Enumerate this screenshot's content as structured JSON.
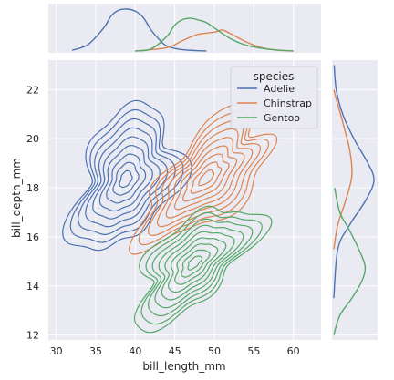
{
  "chart_data": {
    "type": "jointplot-kde",
    "xlabel": "bill_length_mm",
    "ylabel": "bill_depth_mm",
    "xlim": [
      29,
      63.5
    ],
    "ylim": [
      11.8,
      23.2
    ],
    "xticks": [
      30,
      35,
      40,
      45,
      50,
      55,
      60
    ],
    "yticks": [
      12,
      14,
      16,
      18,
      20,
      22
    ],
    "grid": true,
    "background": "#eaeaf2",
    "legend": {
      "title": "species",
      "placement": "top-right"
    },
    "series": [
      {
        "name": "Adelie",
        "color": "#4c72b0",
        "center": [
          38.8,
          18.35
        ],
        "spread": [
          2.7,
          1.2
        ],
        "correlation": 0.38,
        "marginal_x": [
          [
            32,
            0.02
          ],
          [
            34,
            0.15
          ],
          [
            36,
            0.55
          ],
          [
            37,
            0.85
          ],
          [
            38,
            0.98
          ],
          [
            39,
            1.0
          ],
          [
            40,
            0.95
          ],
          [
            41,
            0.8
          ],
          [
            42,
            0.5
          ],
          [
            43,
            0.28
          ],
          [
            44,
            0.12
          ],
          [
            46,
            0.03
          ],
          [
            49,
            0.0
          ]
        ],
        "marginal_y": [
          [
            13.5,
            0.0
          ],
          [
            15.5,
            0.1
          ],
          [
            16.5,
            0.4
          ],
          [
            17.5,
            0.8
          ],
          [
            18.3,
            1.0
          ],
          [
            19.0,
            0.85
          ],
          [
            20.0,
            0.5
          ],
          [
            21.0,
            0.22
          ],
          [
            22.0,
            0.06
          ],
          [
            23.0,
            0.01
          ]
        ]
      },
      {
        "name": "Chinstrap",
        "color": "#dd8452",
        "center": [
          49.0,
          18.4
        ],
        "spread": [
          3.3,
          1.1
        ],
        "correlation": 0.65,
        "marginal_x": [
          [
            40,
            0.0
          ],
          [
            44,
            0.08
          ],
          [
            46,
            0.25
          ],
          [
            48,
            0.4
          ],
          [
            50,
            0.45
          ],
          [
            51,
            0.5
          ],
          [
            52,
            0.42
          ],
          [
            54,
            0.22
          ],
          [
            56,
            0.08
          ],
          [
            58,
            0.02
          ],
          [
            60,
            0.0
          ]
        ],
        "marginal_y": [
          [
            15.5,
            0.0
          ],
          [
            16.5,
            0.1
          ],
          [
            17.5,
            0.3
          ],
          [
            18.5,
            0.45
          ],
          [
            19.5,
            0.4
          ],
          [
            20.5,
            0.25
          ],
          [
            21.5,
            0.08
          ],
          [
            22.0,
            0.0
          ]
        ]
      },
      {
        "name": "Gentoo",
        "color": "#55a868",
        "center": [
          47.5,
          14.95
        ],
        "spread": [
          3.1,
          1.0
        ],
        "correlation": 0.65,
        "marginal_x": [
          [
            40,
            0.0
          ],
          [
            42,
            0.05
          ],
          [
            44,
            0.35
          ],
          [
            45,
            0.62
          ],
          [
            46,
            0.75
          ],
          [
            47,
            0.78
          ],
          [
            48,
            0.74
          ],
          [
            49,
            0.68
          ],
          [
            50,
            0.55
          ],
          [
            52,
            0.3
          ],
          [
            54,
            0.14
          ],
          [
            57,
            0.04
          ],
          [
            60,
            0.0
          ]
        ],
        "marginal_y": [
          [
            12.0,
            0.0
          ],
          [
            12.8,
            0.15
          ],
          [
            13.5,
            0.45
          ],
          [
            14.2,
            0.7
          ],
          [
            14.8,
            0.78
          ],
          [
            15.5,
            0.62
          ],
          [
            16.3,
            0.38
          ],
          [
            17.0,
            0.15
          ],
          [
            18.0,
            0.02
          ]
        ]
      }
    ]
  }
}
